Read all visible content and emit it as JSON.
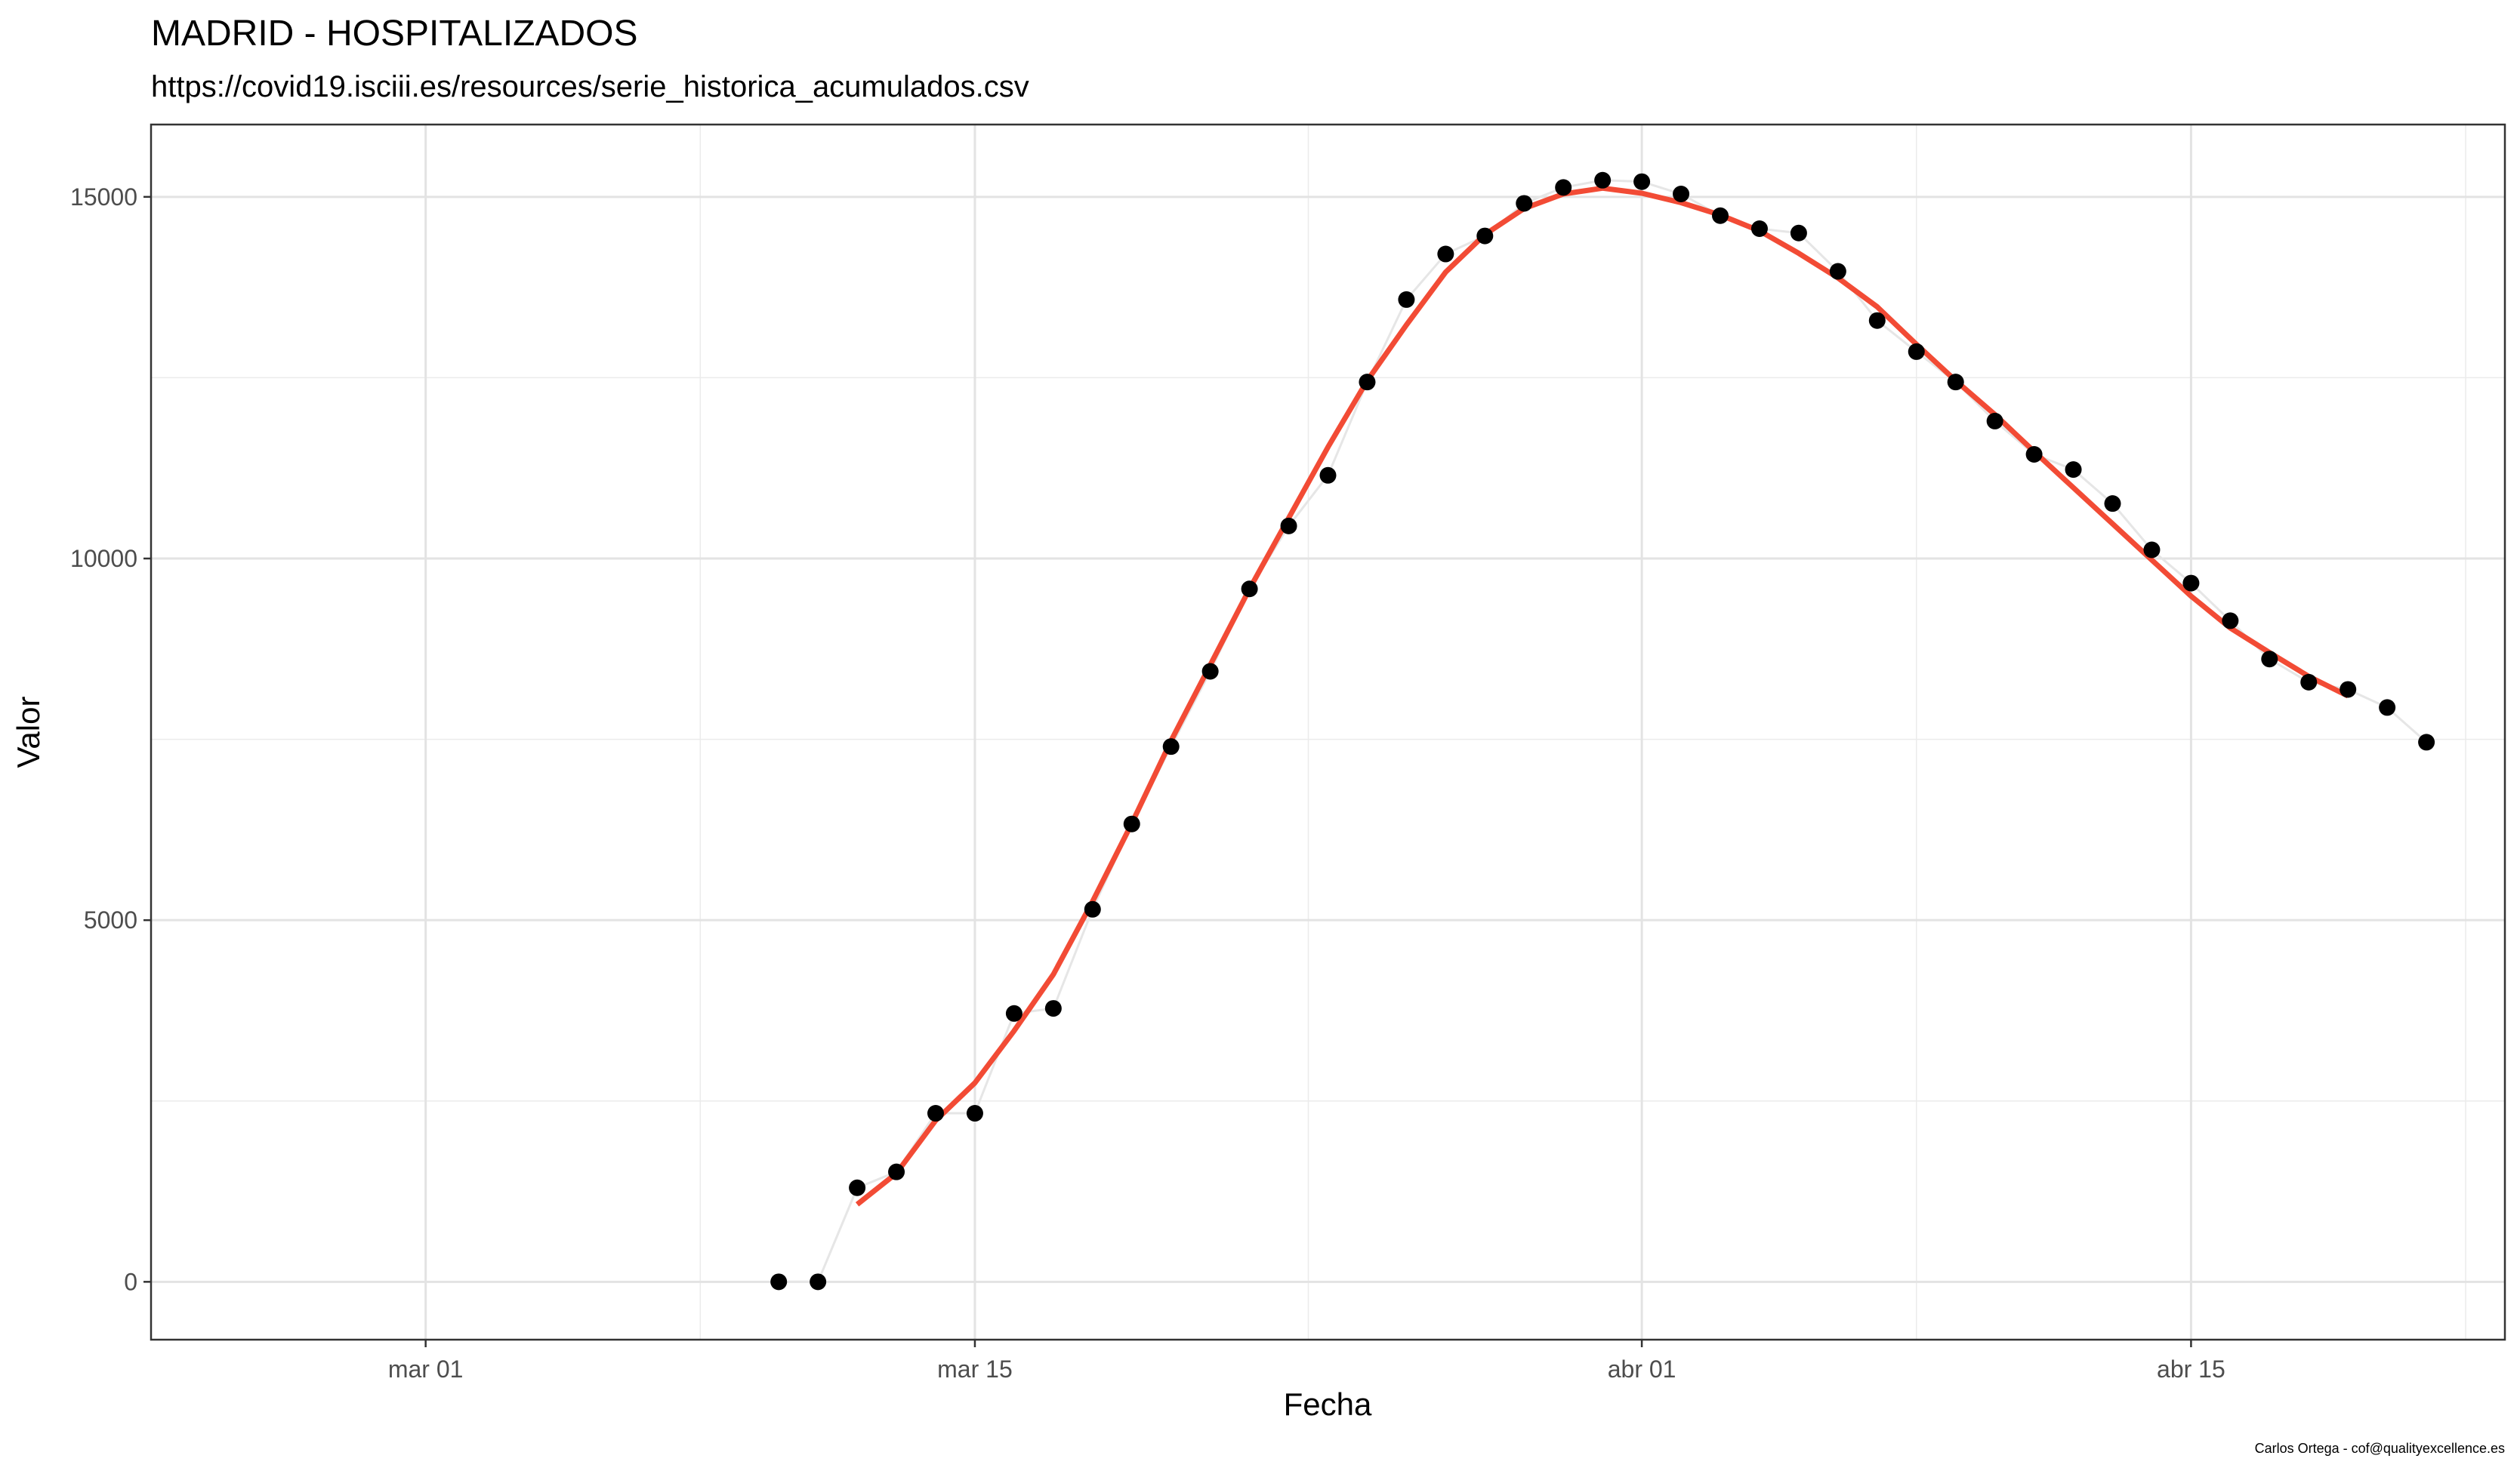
{
  "chart_data": {
    "type": "line",
    "title": "MADRID - HOSPITALIZADOS",
    "subtitle": "https://covid19.isciii.es/resources/serie_historica_acumulados.csv",
    "caption": "Carlos Ortega - cof@qualityexcellence.es",
    "xlabel": "Fecha",
    "ylabel": "Valor",
    "x_axis": {
      "type": "date",
      "range": [
        "2020-02-23",
        "2020-04-23"
      ],
      "ticks": [
        {
          "date": "2020-03-01",
          "label": "mar 01"
        },
        {
          "date": "2020-03-15",
          "label": "mar 15"
        },
        {
          "date": "2020-04-01",
          "label": "abr 01"
        },
        {
          "date": "2020-04-15",
          "label": "abr 15"
        }
      ]
    },
    "y_axis": {
      "range": [
        -800,
        16000
      ],
      "ticks": [
        0,
        5000,
        10000,
        15000
      ],
      "tick_labels": [
        "0",
        "5000",
        "10000",
        "15000"
      ]
    },
    "grid": true,
    "series": [
      {
        "kind": "points",
        "color": "#000000",
        "line_color": "#e6e6e6",
        "x": [
          "2020-03-10",
          "2020-03-11",
          "2020-03-12",
          "2020-03-13",
          "2020-03-14",
          "2020-03-15",
          "2020-03-16",
          "2020-03-17",
          "2020-03-18",
          "2020-03-19",
          "2020-03-20",
          "2020-03-21",
          "2020-03-22",
          "2020-03-23",
          "2020-03-24",
          "2020-03-25",
          "2020-03-26",
          "2020-03-27",
          "2020-03-28",
          "2020-03-29",
          "2020-03-30",
          "2020-03-31",
          "2020-04-01",
          "2020-04-02",
          "2020-04-03",
          "2020-04-04",
          "2020-04-05",
          "2020-04-06",
          "2020-04-07",
          "2020-04-08",
          "2020-04-09",
          "2020-04-10",
          "2020-04-11",
          "2020-04-12",
          "2020-04-13",
          "2020-04-14",
          "2020-04-15",
          "2020-04-16",
          "2020-04-17",
          "2020-04-18",
          "2020-04-19",
          "2020-04-20",
          "2020-04-21"
        ],
        "values": [
          0,
          0,
          1300,
          1520,
          2330,
          2330,
          3710,
          3780,
          5150,
          6330,
          7400,
          8440,
          9580,
          10450,
          11150,
          12440,
          13580,
          14210,
          14460,
          14910,
          15130,
          15230,
          15210,
          15040,
          14740,
          14560,
          14500,
          13970,
          13290,
          12860,
          12440,
          11900,
          11440,
          11230,
          10760,
          10120,
          9660,
          9140,
          8610,
          8290,
          8190,
          7940,
          7460
        ]
      },
      {
        "kind": "smooth",
        "color": "#f24b35",
        "x": [
          "2020-03-12",
          "2020-03-13",
          "2020-03-14",
          "2020-03-15",
          "2020-03-16",
          "2020-03-17",
          "2020-03-18",
          "2020-03-19",
          "2020-03-20",
          "2020-03-21",
          "2020-03-22",
          "2020-03-23",
          "2020-03-24",
          "2020-03-25",
          "2020-03-26",
          "2020-03-27",
          "2020-03-28",
          "2020-03-29",
          "2020-03-30",
          "2020-03-31",
          "2020-04-01",
          "2020-04-02",
          "2020-04-03",
          "2020-04-04",
          "2020-04-05",
          "2020-04-06",
          "2020-04-07",
          "2020-04-08",
          "2020-04-09",
          "2020-04-10",
          "2020-04-11",
          "2020-04-12",
          "2020-04-13",
          "2020-04-14",
          "2020-04-15",
          "2020-04-16",
          "2020-04-17",
          "2020-04-18",
          "2020-04-19"
        ],
        "values": [
          1070,
          1500,
          2230,
          2750,
          3470,
          4250,
          5260,
          6340,
          7480,
          8530,
          9580,
          10560,
          11540,
          12460,
          13230,
          13960,
          14480,
          14840,
          15040,
          15120,
          15050,
          14920,
          14750,
          14530,
          14220,
          13880,
          13480,
          12960,
          12460,
          11990,
          11480,
          10980,
          10480,
          9980,
          9480,
          9040,
          8700,
          8370,
          8100
        ]
      }
    ]
  }
}
